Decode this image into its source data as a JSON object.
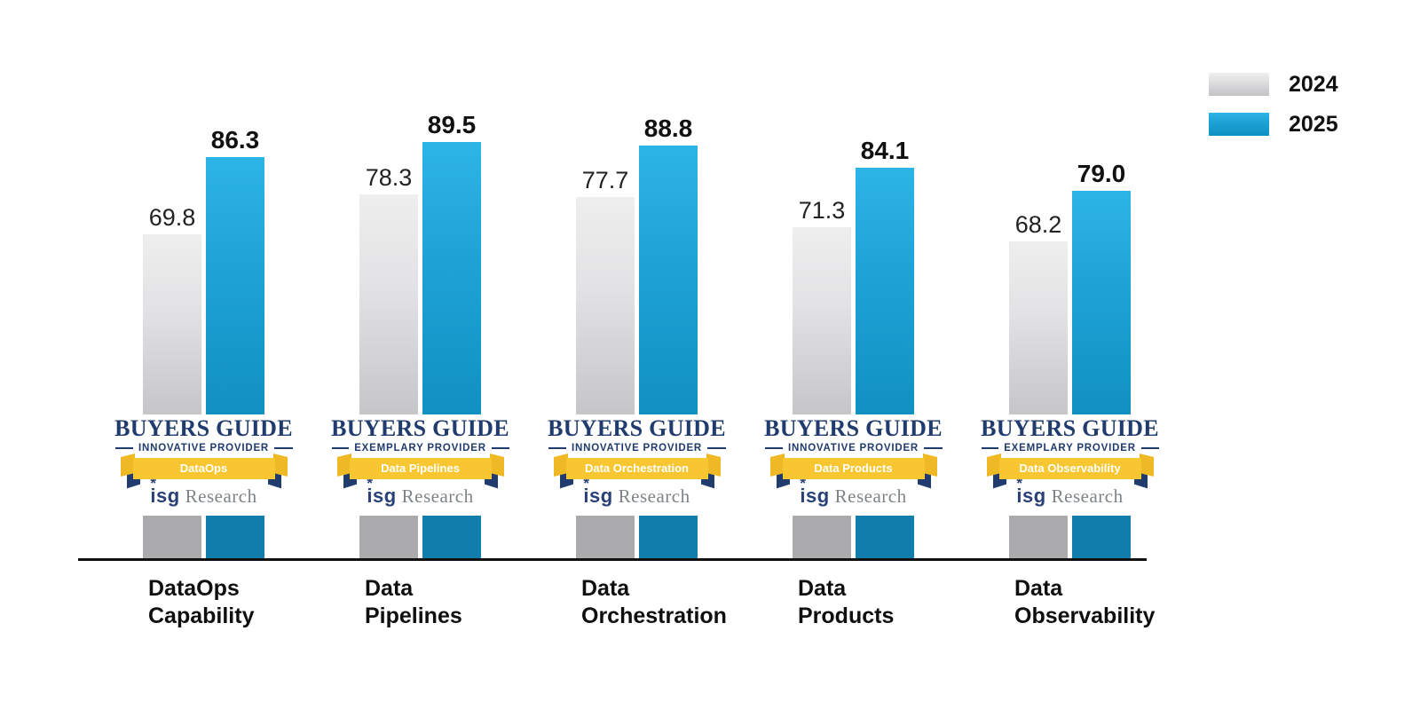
{
  "chart_data": {
    "type": "bar",
    "title": "",
    "categories": [
      "DataOps Capability",
      "Data Pipelines",
      "Data Orchestration",
      "Data Products",
      "Data Observability"
    ],
    "category_lines": [
      [
        "DataOps",
        "Capability"
      ],
      [
        "Data",
        "Pipelines"
      ],
      [
        "Data",
        "Orchestration"
      ],
      [
        "Data",
        "Products"
      ],
      [
        "Data",
        "Observability"
      ]
    ],
    "series": [
      {
        "name": "2024",
        "color": "#c6c6c8",
        "values": [
          69.8,
          78.3,
          77.7,
          71.3,
          68.2
        ]
      },
      {
        "name": "2025",
        "color": "#1a9ed0",
        "values": [
          86.3,
          89.5,
          88.8,
          84.1,
          79.0
        ]
      }
    ],
    "value_labels": {
      "2024": [
        "69.8",
        "78.3",
        "77.7",
        "71.3",
        "68.2"
      ],
      "2025": [
        "86.3",
        "89.5",
        "88.8",
        "84.1",
        "79.0"
      ]
    },
    "ylim": [
      0,
      100
    ],
    "grid": false,
    "legend_position": "top-right"
  },
  "badges": [
    {
      "title": "BUYERS GUIDE",
      "provider": "INNOVATIVE PROVIDER",
      "ribbon": "DataOps"
    },
    {
      "title": "BUYERS GUIDE",
      "provider": "EXEMPLARY PROVIDER",
      "ribbon": "Data Pipelines"
    },
    {
      "title": "BUYERS GUIDE",
      "provider": "INNOVATIVE PROVIDER",
      "ribbon": "Data Orchestration"
    },
    {
      "title": "BUYERS GUIDE",
      "provider": "INNOVATIVE PROVIDER",
      "ribbon": "Data Products"
    },
    {
      "title": "BUYERS GUIDE",
      "provider": "EXEMPLARY PROVIDER",
      "ribbon": "Data Observability"
    }
  ],
  "badge_common": {
    "org_wordmark": "isg",
    "org_star": "*",
    "org_suffix": "Research"
  },
  "colors": {
    "bar_2024_top": "#eeeeef",
    "bar_2024_bottom": "#c6c6c8",
    "bar_2024_stub": "#ababad",
    "bar_2025_top": "#2db4e7",
    "bar_2025_bottom": "#1190c2",
    "bar_2025_stub": "#107dac",
    "badge_navy": "#203b6e",
    "ribbon_yellow": "#f8c630",
    "ribbon_fold_yellow": "#efb825",
    "isg_research_gray": "#7e8487",
    "axis_black": "#111111",
    "value_label_black": "#111111"
  }
}
